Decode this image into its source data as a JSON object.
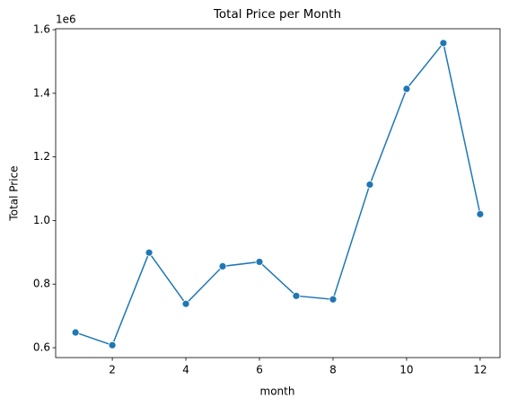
{
  "chart_data": {
    "type": "line",
    "title": "Total Price per Month",
    "xlabel": "month",
    "ylabel": "Total Price",
    "y_offset_label": "1e6",
    "x": [
      1,
      2,
      3,
      4,
      5,
      6,
      7,
      8,
      9,
      10,
      11,
      12
    ],
    "values": [
      0.648,
      0.608,
      0.899,
      0.738,
      0.856,
      0.87,
      0.763,
      0.752,
      1.113,
      1.414,
      1.558,
      1.02
    ],
    "color": "#1f77b4",
    "xlim": [
      0.46,
      12.54
    ],
    "xticks": [
      2,
      4,
      6,
      8,
      10,
      12
    ],
    "ylim": [
      0.569,
      1.603
    ],
    "yticks": [
      0.6,
      0.8,
      {
        "value": 1.0,
        "label": "1.0"
      },
      1.2,
      1.4,
      1.6
    ],
    "grid": false
  }
}
